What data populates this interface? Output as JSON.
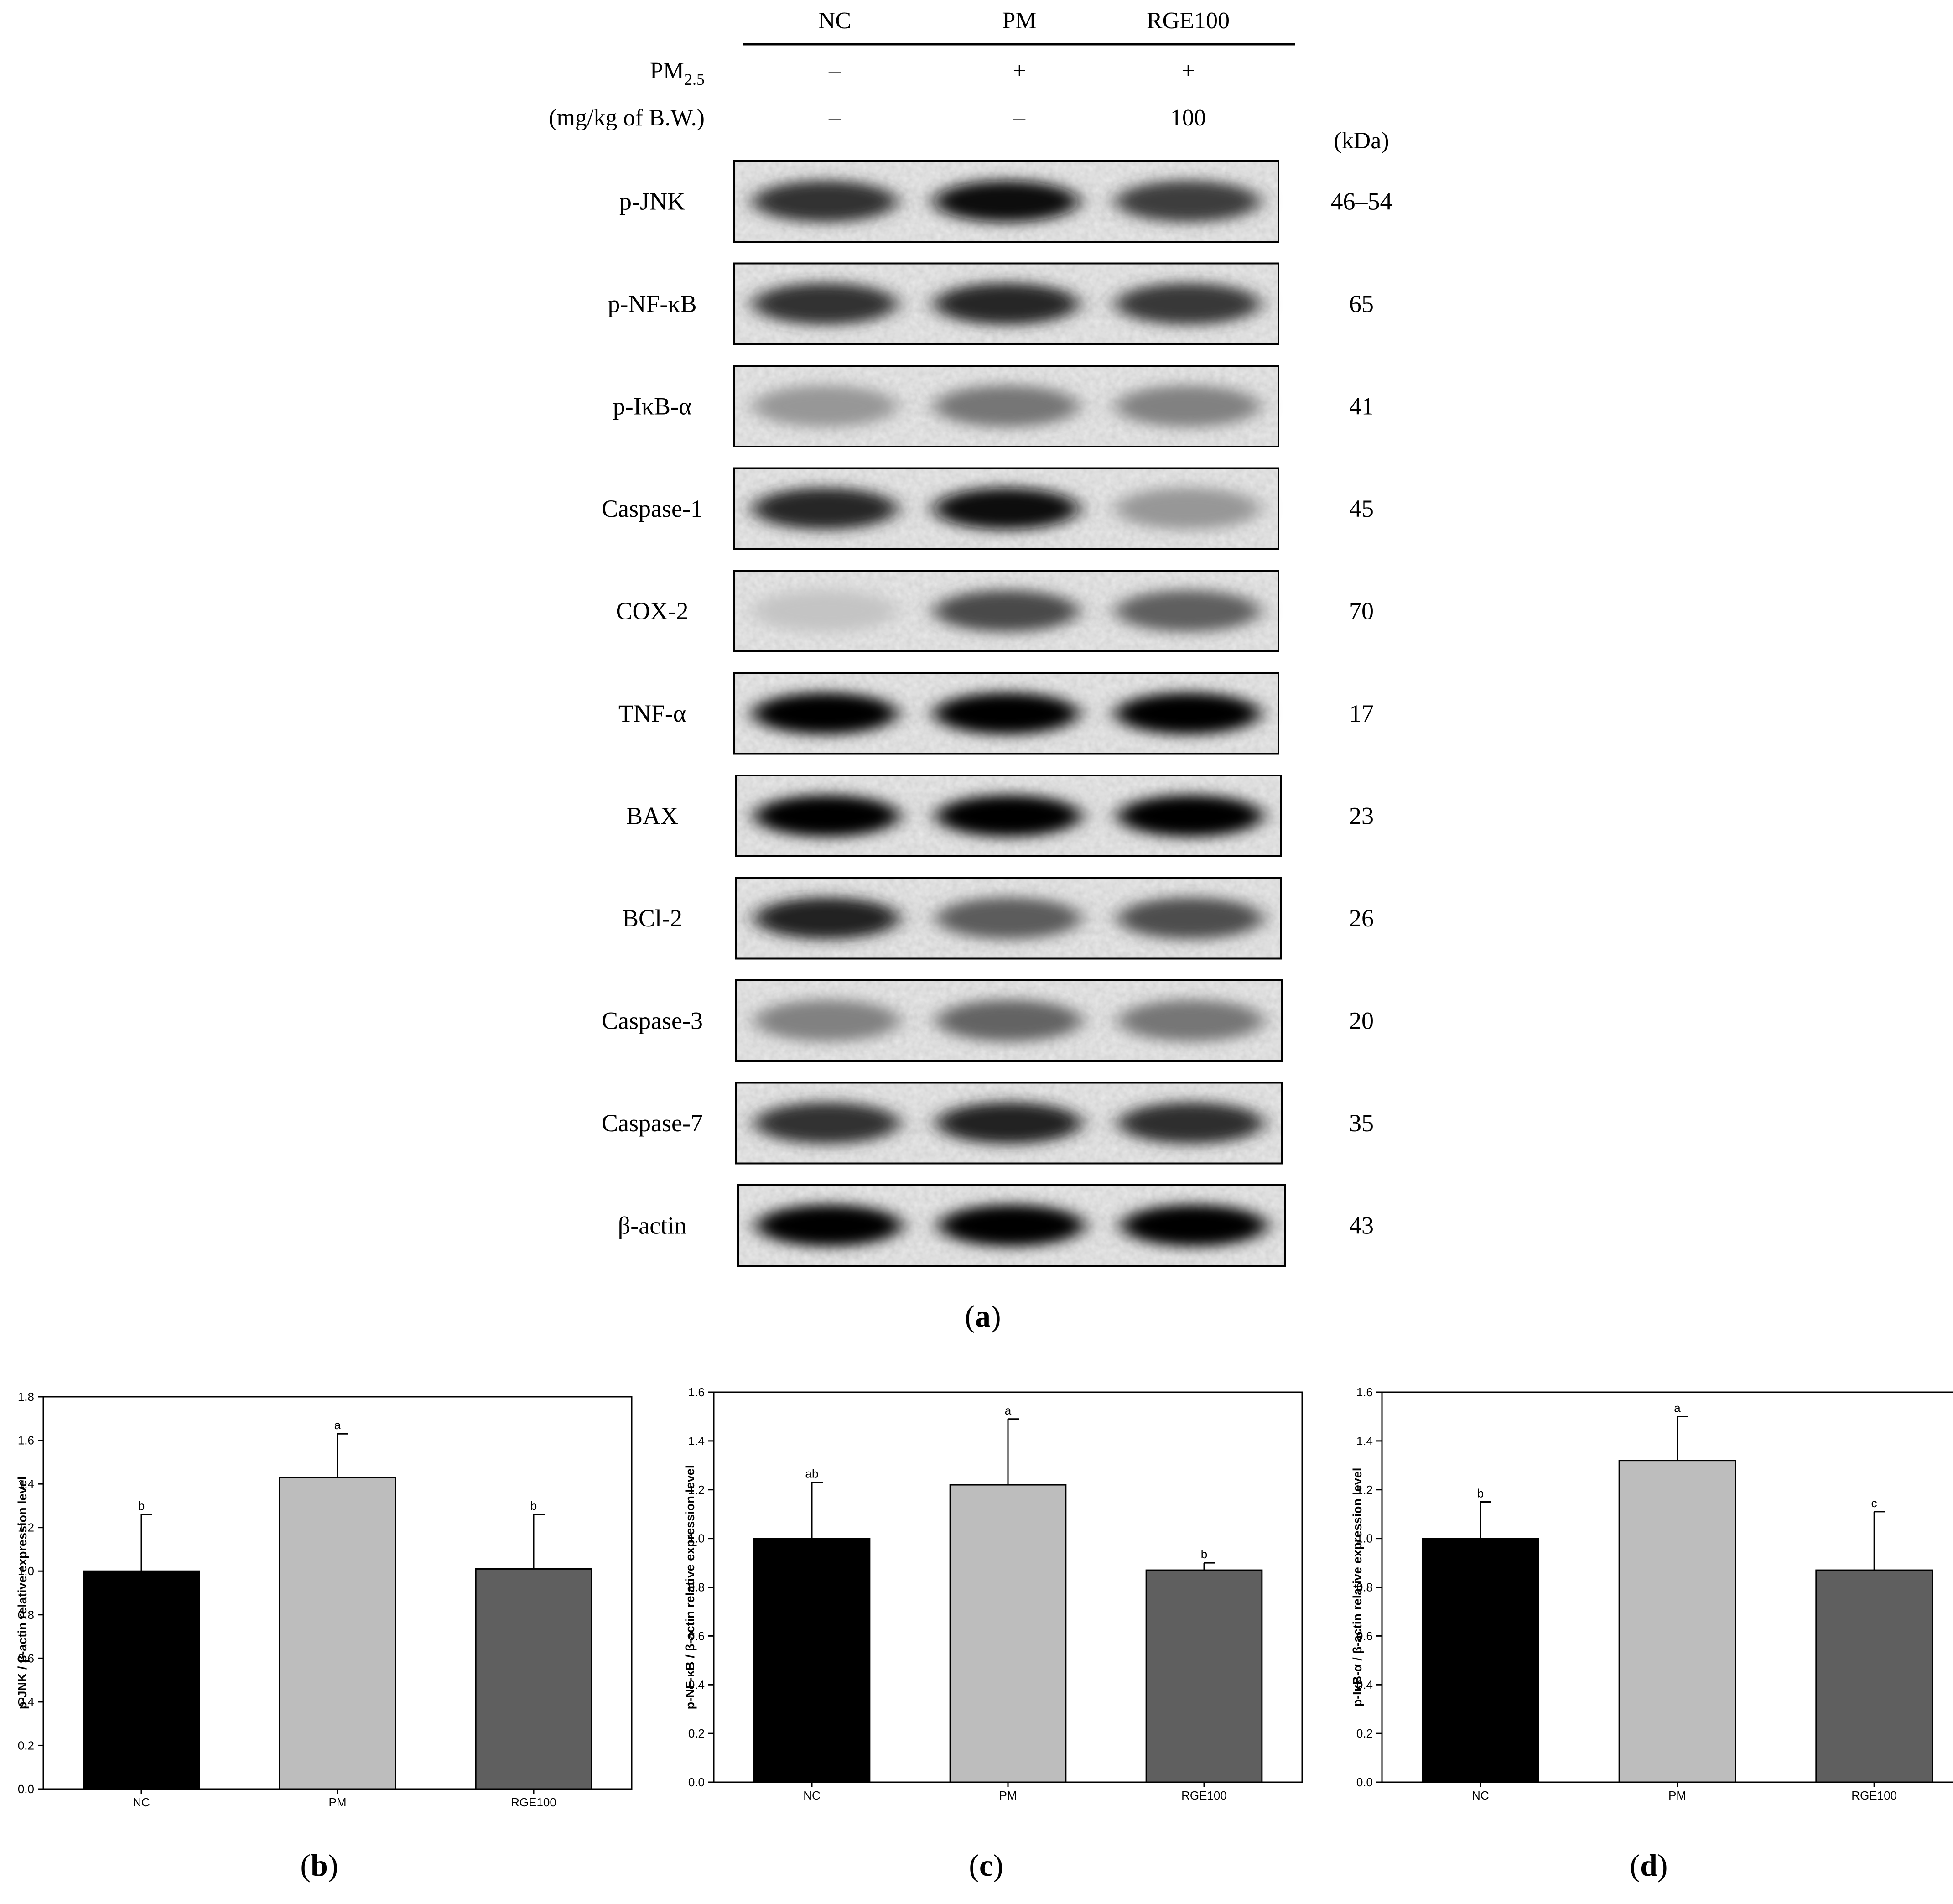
{
  "blot": {
    "groups": [
      "NC",
      "PM",
      "RGE100"
    ],
    "conditions": [
      {
        "label": "PM",
        "subscript": "2.5",
        "values": [
          "–",
          "+",
          "+"
        ]
      },
      {
        "label": "(mg/kg of B.W.)",
        "subscript": "",
        "values": [
          "–",
          "–",
          "100"
        ]
      }
    ],
    "kda_header": "(kDa)",
    "rows": [
      {
        "label": "p-JNK",
        "kda": "46–54",
        "intensity": [
          0.8,
          0.95,
          0.75
        ]
      },
      {
        "label": "p-NF-κB",
        "kda": "65",
        "intensity": [
          0.8,
          0.85,
          0.78
        ]
      },
      {
        "label": "p-IκB-α",
        "kda": "41",
        "intensity": [
          0.35,
          0.5,
          0.45
        ]
      },
      {
        "label": "Caspase-1",
        "kda": "45",
        "intensity": [
          0.85,
          0.98,
          0.35
        ]
      },
      {
        "label": "COX-2",
        "kda": "70",
        "intensity": [
          0.15,
          0.7,
          0.6
        ]
      },
      {
        "label": "TNF-α",
        "kda": "17",
        "intensity": [
          1.0,
          1.0,
          1.0
        ]
      },
      {
        "label": "BAX",
        "kda": "23",
        "intensity": [
          1.0,
          1.0,
          1.0
        ]
      },
      {
        "label": "BCl-2",
        "kda": "26",
        "intensity": [
          0.88,
          0.62,
          0.68
        ]
      },
      {
        "label": "Caspase-3",
        "kda": "20",
        "intensity": [
          0.45,
          0.58,
          0.5
        ]
      },
      {
        "label": "Caspase-7",
        "kda": "35",
        "intensity": [
          0.8,
          0.88,
          0.82
        ]
      },
      {
        "label": "β-actin",
        "kda": "43",
        "intensity": [
          1.0,
          1.0,
          1.0
        ]
      }
    ],
    "panel_label": {
      "open": "(",
      "letter": "a",
      "close": ")"
    }
  },
  "chart_data": [
    {
      "type": "bar",
      "categories": [
        "NC",
        "PM",
        "RGE100"
      ],
      "values": [
        1.0,
        1.43,
        1.01
      ],
      "errors": [
        0.26,
        0.2,
        0.25
      ],
      "letters": [
        "b",
        "a",
        "b"
      ],
      "colors": [
        "#000000",
        "#bdbdbd",
        "#5f5f5f"
      ],
      "ylabel": "p-JNK / β-actin relative expression level",
      "ylim": [
        0,
        1.8
      ],
      "yticks": [
        "0.0",
        "0.2",
        "0.4",
        "0.6",
        "0.8",
        "1.0",
        "1.2",
        "1.4",
        "1.6",
        "1.8"
      ],
      "grid": false,
      "panel_label": {
        "open": "(",
        "letter": "b",
        "close": ")"
      }
    },
    {
      "type": "bar",
      "categories": [
        "NC",
        "PM",
        "RGE100"
      ],
      "values": [
        1.0,
        1.22,
        0.87
      ],
      "errors": [
        0.23,
        0.27,
        0.03
      ],
      "letters": [
        "ab",
        "a",
        "b"
      ],
      "colors": [
        "#000000",
        "#bdbdbd",
        "#5f5f5f"
      ],
      "ylabel": "p-NF-κB / β-actin relative expression level",
      "ylim": [
        0,
        1.6
      ],
      "yticks": [
        "0.0",
        "0.2",
        "0.4",
        "0.6",
        "0.8",
        "1.0",
        "1.2",
        "1.4",
        "1.6"
      ],
      "grid": false,
      "panel_label": {
        "open": "(",
        "letter": "c",
        "close": ")"
      }
    },
    {
      "type": "bar",
      "categories": [
        "NC",
        "PM",
        "RGE100"
      ],
      "values": [
        1.0,
        1.32,
        0.87
      ],
      "errors": [
        0.15,
        0.18,
        0.24
      ],
      "letters": [
        "b",
        "a",
        "c"
      ],
      "colors": [
        "#000000",
        "#bdbdbd",
        "#5f5f5f"
      ],
      "ylabel": "p-IκB-α / β-actin relative expression level",
      "ylim": [
        0,
        1.6
      ],
      "yticks": [
        "0.0",
        "0.2",
        "0.4",
        "0.6",
        "0.8",
        "1.0",
        "1.2",
        "1.4",
        "1.6"
      ],
      "grid": false,
      "panel_label": {
        "open": "(",
        "letter": "d",
        "close": ")"
      }
    }
  ]
}
